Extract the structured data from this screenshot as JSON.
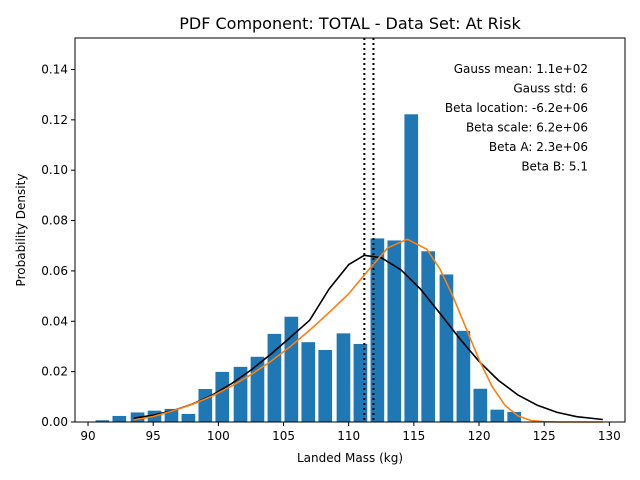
{
  "chart_data": {
    "type": "bar",
    "title": "PDF Component: TOTAL - Data Set: At Risk",
    "xlabel": "Landed Mass (kg)",
    "ylabel": "Probability Density",
    "xlim": [
      89,
      131.2
    ],
    "ylim": [
      0,
      0.1525
    ],
    "xticks": [
      90,
      95,
      100,
      105,
      110,
      115,
      120,
      125,
      130
    ],
    "yticks": [
      0.0,
      0.02,
      0.04,
      0.06,
      0.08,
      0.1,
      0.12,
      0.14
    ],
    "ytick_labels": [
      "0.00",
      "0.02",
      "0.04",
      "0.06",
      "0.08",
      "0.10",
      "0.12",
      "0.14"
    ],
    "grid": false,
    "bar_color": "#1f77b4",
    "bins": {
      "centers": [
        91.1,
        92.4,
        93.8,
        95.1,
        96.4,
        97.7,
        99.0,
        100.3,
        101.7,
        103.0,
        104.3,
        105.6,
        106.9,
        108.2,
        109.6,
        110.9,
        112.2,
        113.5,
        114.8,
        116.1,
        117.5,
        118.8,
        120.1,
        121.4,
        122.7
      ],
      "width": 1.05,
      "values": [
        0.0007,
        0.0024,
        0.0038,
        0.0045,
        0.0052,
        0.0032,
        0.0131,
        0.0199,
        0.0219,
        0.0259,
        0.035,
        0.0418,
        0.0317,
        0.0286,
        0.0352,
        0.031,
        0.0729,
        0.0721,
        0.1222,
        0.0678,
        0.0586,
        0.0362,
        0.0132,
        0.0049,
        0.004
      ]
    },
    "vlines": [
      {
        "x": 111.2,
        "color": "#000000",
        "style": "dotted"
      },
      {
        "x": 111.9,
        "color": "#000000",
        "style": "dotted"
      }
    ],
    "series": [
      {
        "color": "#000000",
        "x": [
          93.5,
          95,
          96.5,
          98,
          99.5,
          101,
          102.5,
          104,
          105.5,
          107,
          108.5,
          110,
          111.2,
          112.5,
          114,
          115.5,
          117,
          118.5,
          120,
          121.5,
          123,
          124.5,
          126,
          127.5,
          129.5
        ],
        "y": [
          0.0015,
          0.0027,
          0.0045,
          0.0071,
          0.0106,
          0.0152,
          0.0206,
          0.0268,
          0.0335,
          0.0404,
          0.0528,
          0.0625,
          0.0662,
          0.0652,
          0.0605,
          0.0528,
          0.0432,
          0.0332,
          0.0241,
          0.0165,
          0.0107,
          0.0066,
          0.0038,
          0.0021,
          0.001
        ]
      },
      {
        "color": "#ff7f0e",
        "x": [
          93.5,
          95,
          96.5,
          98,
          99.5,
          101,
          102.5,
          104,
          105.5,
          107,
          108.5,
          110,
          111.5,
          113,
          114.5,
          116,
          117,
          118,
          119,
          120,
          121,
          122,
          123,
          124,
          125,
          126,
          127,
          128,
          129.5
        ],
        "y": [
          0.0008,
          0.0022,
          0.0044,
          0.007,
          0.0103,
          0.0142,
          0.0188,
          0.024,
          0.0299,
          0.0364,
          0.0435,
          0.0509,
          0.0602,
          0.0692,
          0.0726,
          0.0686,
          0.0608,
          0.0499,
          0.0373,
          0.0248,
          0.0141,
          0.0066,
          0.0024,
          0.0006,
          0.0001,
          0.0,
          0.0,
          0.0,
          0.0
        ]
      }
    ],
    "annotations": [
      "Gauss mean: 1.1e+02",
      "Gauss std: 6",
      "Beta location: -6.2e+06",
      "Beta scale: 6.2e+06",
      "Beta A: 2.3e+06",
      "Beta B: 5.1"
    ]
  }
}
